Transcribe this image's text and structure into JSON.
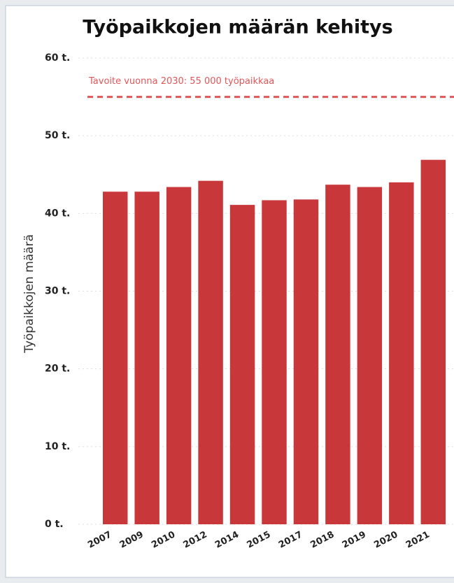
{
  "chart_data": {
    "type": "bar",
    "title": "Työpaikkojen määrän kehitys",
    "y_label": "Työpaikkojen määrä",
    "categories": [
      "2007",
      "2009",
      "2010",
      "2012",
      "2014",
      "2015",
      "2017",
      "2018",
      "2019",
      "2020",
      "2021"
    ],
    "values": [
      42800,
      42800,
      43400,
      44200,
      41100,
      41700,
      41800,
      43700,
      43400,
      44000,
      46900
    ],
    "color": "#c8383a",
    "ylim": [
      0,
      60000
    ],
    "yticks": [
      {
        "value": 0,
        "label": "0 t."
      },
      {
        "value": 10000,
        "label": "10 t."
      },
      {
        "value": 20000,
        "label": "20 t."
      },
      {
        "value": 30000,
        "label": "30 t."
      },
      {
        "value": 40000,
        "label": "40 t."
      },
      {
        "value": 50000,
        "label": "50 t."
      },
      {
        "value": 60000,
        "label": "60 t."
      }
    ],
    "grid": true,
    "target": {
      "value": 55000,
      "label": "Tavoite vuonna 2030: 55 000 työpaikkaa",
      "color": "#e0575a"
    }
  }
}
